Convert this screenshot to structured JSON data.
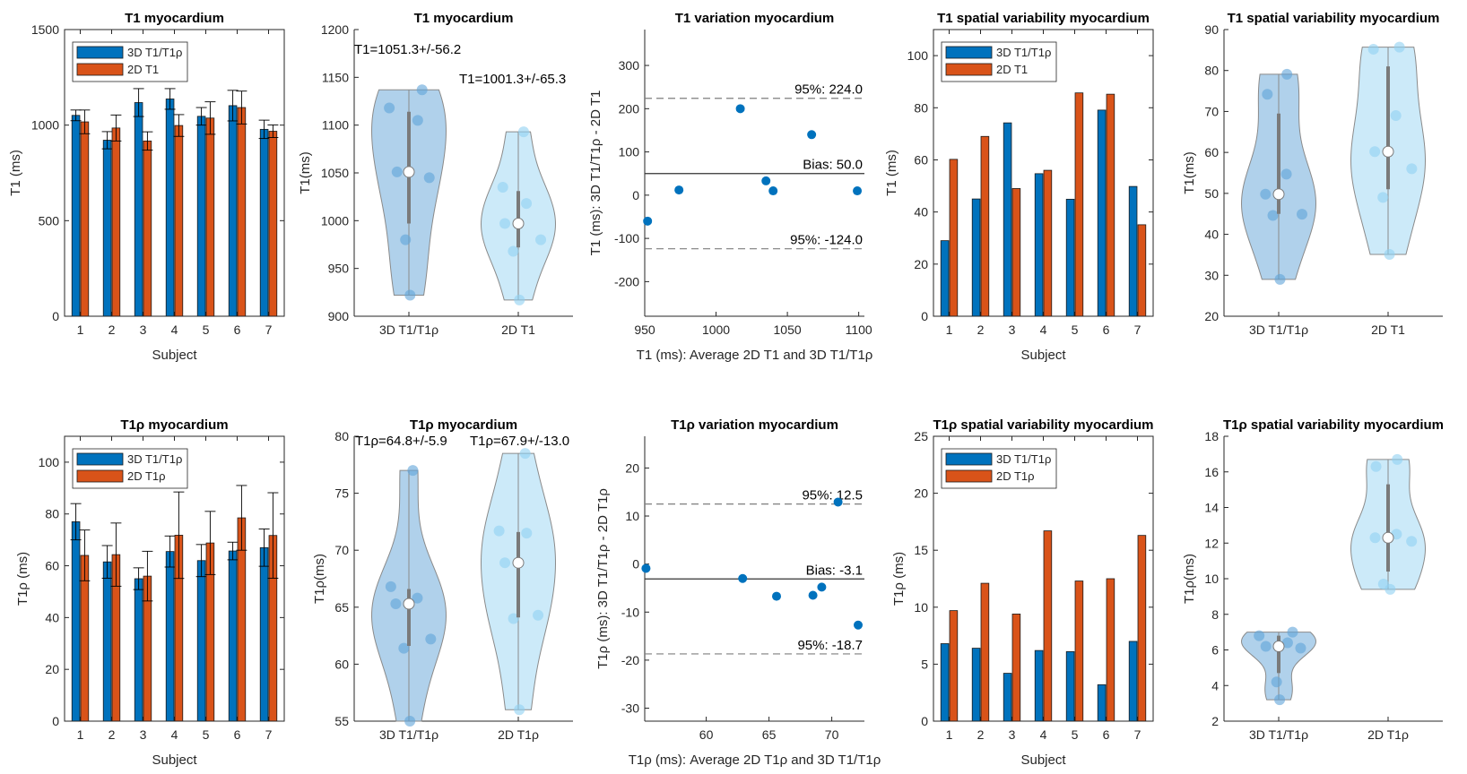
{
  "chart_data": [
    {
      "type": "bar",
      "title": "T1 myocardium",
      "xlabel": "Subject",
      "ylabel": "T1 (ms)",
      "categories": [
        "1",
        "2",
        "3",
        "4",
        "5",
        "6",
        "7"
      ],
      "ylim": [
        0,
        1500
      ],
      "yticks": [
        0,
        500,
        1000,
        1500
      ],
      "legend_placement": "top-left",
      "series": [
        {
          "name": "3D T1/T1ρ",
          "color": "#0072BD",
          "values": [
            1051,
            921,
            1118,
            1137,
            1046,
            1102,
            978
          ],
          "errors": [
            28,
            45,
            73,
            54,
            46,
            80,
            48
          ]
        },
        {
          "name": "2D T1",
          "color": "#D95319",
          "values": [
            1017,
            985,
            917,
            998,
            1037,
            1092,
            968
          ],
          "errors": [
            62,
            68,
            48,
            57,
            85,
            86,
            33
          ]
        }
      ]
    },
    {
      "type": "violin",
      "title": "T1 myocardium",
      "ylabel": "T1(ms)",
      "ylim": [
        900,
        1200
      ],
      "yticks": [
        900,
        950,
        1000,
        1050,
        1100,
        1150,
        1200
      ],
      "groups": [
        {
          "name": "3D T1/T1ρ",
          "fill": "#8fbde3",
          "dot": "#5fa3d8",
          "points": [
            1137,
            1118,
            1105,
            1051,
            1045,
            980,
            922
          ],
          "median": 1051,
          "q1": 997,
          "q3": 1114
        },
        {
          "name": "2D T1",
          "fill": "#b6e1f7",
          "dot": "#8fd0f2",
          "points": [
            1093,
            1035,
            1018,
            997,
            980,
            968,
            917
          ],
          "median": 997,
          "q1": 972,
          "q3": 1031
        }
      ],
      "annotations": [
        "T1=1051.3+/-56.2",
        "T1=1001.3+/-65.3"
      ]
    },
    {
      "type": "scatter",
      "title": "T1 variation myocardium",
      "xlabel": "T1 (ms): Average 2D T1 and 3D T1/T1ρ",
      "ylabel": "T1 (ms): 3D T1/T1ρ - 2D T1",
      "xlim": [
        950,
        1104
      ],
      "ylim": [
        -280,
        383
      ],
      "xticks": [
        950,
        1000,
        1050,
        1100
      ],
      "yticks": [
        -200,
        -100,
        0,
        100,
        200,
        300
      ],
      "x": [
        952,
        974,
        1017,
        1035,
        1040,
        1067,
        1099
      ],
      "y": [
        -60,
        12,
        200,
        33,
        10,
        140,
        10
      ],
      "color": "#0072BD",
      "lines": [
        {
          "label": "95%: 224.0",
          "value": 224.0,
          "style": "dashed"
        },
        {
          "label": "Bias: 50.0",
          "value": 50.0,
          "style": "solid"
        },
        {
          "label": "95%: -124.0",
          "value": -124.0,
          "style": "dashed"
        }
      ]
    },
    {
      "type": "bar",
      "title": "T1 spatial variability myocardium",
      "xlabel": "Subject",
      "ylabel": "T1 (ms)",
      "categories": [
        "1",
        "2",
        "3",
        "4",
        "5",
        "6",
        "7"
      ],
      "ylim": [
        0,
        110
      ],
      "yticks": [
        0,
        20,
        40,
        60,
        80,
        100
      ],
      "legend_placement": "top-left",
      "series": [
        {
          "name": "3D T1/T1ρ",
          "color": "#0072BD",
          "values": [
            29.0,
            45.0,
            74.2,
            54.7,
            44.9,
            79.1,
            49.8
          ]
        },
        {
          "name": "2D T1",
          "color": "#D95319",
          "values": [
            60.2,
            69.0,
            49.0,
            56.0,
            85.7,
            85.2,
            35.1
          ]
        }
      ]
    },
    {
      "type": "violin",
      "title": "T1 spatial variability myocardium",
      "ylabel": "T1(ms)",
      "ylim": [
        20,
        90
      ],
      "yticks": [
        20,
        30,
        40,
        50,
        60,
        70,
        80,
        90
      ],
      "groups": [
        {
          "name": "3D T1/T1ρ",
          "fill": "#8fbde3",
          "dot": "#5fa3d8",
          "points": [
            79.1,
            74.2,
            54.7,
            49.8,
            44.9,
            44.6,
            29.0
          ],
          "median": 49.8,
          "q1": 45.0,
          "q3": 69.5
        },
        {
          "name": "2D T1",
          "fill": "#b6e1f7",
          "dot": "#8fd0f2",
          "points": [
            85.7,
            85.2,
            69.0,
            60.2,
            56.0,
            49.0,
            35.1
          ],
          "median": 60.2,
          "q1": 51.0,
          "q3": 81.0
        }
      ],
      "annotations": []
    },
    {
      "type": "bar",
      "title": "T1ρ myocardium",
      "xlabel": "Subject",
      "ylabel": "T1ρ (ms)",
      "categories": [
        "1",
        "2",
        "3",
        "4",
        "5",
        "6",
        "7"
      ],
      "ylim": [
        0,
        110
      ],
      "yticks": [
        0,
        20,
        40,
        60,
        80,
        100
      ],
      "legend_placement": "top-left",
      "series": [
        {
          "name": "3D T1/T1ρ",
          "color": "#0072BD",
          "values": [
            77.0,
            61.5,
            55.0,
            65.5,
            62.0,
            65.7,
            67.0
          ],
          "errors": [
            7.0,
            6.3,
            4.2,
            6.0,
            6.2,
            3.4,
            7.2
          ]
        },
        {
          "name": "2D T1ρ",
          "color": "#D95319",
          "values": [
            64.0,
            64.3,
            56.0,
            71.8,
            68.8,
            78.5,
            71.7
          ],
          "errors": [
            9.8,
            12.2,
            9.6,
            16.7,
            12.2,
            12.5,
            16.5
          ]
        }
      ]
    },
    {
      "type": "violin",
      "title": "T1ρ myocardium",
      "ylabel": "T1ρ(ms)",
      "ylim": [
        55,
        80
      ],
      "yticks": [
        55,
        60,
        65,
        70,
        75,
        80
      ],
      "groups": [
        {
          "name": "3D T1/T1ρ",
          "fill": "#8fbde3",
          "dot": "#5fa3d8",
          "points": [
            77.0,
            66.8,
            65.8,
            65.3,
            62.2,
            61.4,
            55.0
          ],
          "median": 65.3,
          "q1": 61.6,
          "q3": 66.6
        },
        {
          "name": "2D T1ρ",
          "fill": "#b6e1f7",
          "dot": "#8fd0f2",
          "points": [
            78.5,
            71.7,
            71.5,
            68.9,
            64.3,
            64.0,
            56.0
          ],
          "median": 68.9,
          "q1": 64.1,
          "q3": 71.6
        }
      ],
      "annotations": [
        "T1ρ=64.8+/-5.9",
        "T1ρ=67.9+/-13.0"
      ]
    },
    {
      "type": "scatter",
      "title": "T1ρ variation myocardium",
      "xlabel": "T1ρ (ms): Average 2D T1ρ and 3D T1/T1ρ",
      "ylabel": "T1ρ (ms): 3D T1/T1ρ - 2D T1ρ",
      "xlim": [
        55.1,
        72.6
      ],
      "ylim": [
        -32.7,
        26.6
      ],
      "xticks": [
        60,
        65,
        70
      ],
      "yticks": [
        -30,
        -20,
        -10,
        0,
        10,
        20
      ],
      "x": [
        55.2,
        62.9,
        65.6,
        68.5,
        69.2,
        70.5,
        72.1
      ],
      "y": [
        -0.9,
        -3.0,
        -6.7,
        -6.5,
        -4.8,
        12.9,
        -12.7
      ],
      "color": "#0072BD",
      "lines": [
        {
          "label": "95%: 12.5",
          "value": 12.5,
          "style": "dashed"
        },
        {
          "label": "Bias: -3.1",
          "value": -3.1,
          "style": "solid"
        },
        {
          "label": "95%: -18.7",
          "value": -18.7,
          "style": "dashed"
        }
      ]
    },
    {
      "type": "bar",
      "title": "T1ρ spatial variability myocardium",
      "xlabel": "Subject",
      "ylabel": "T1ρ (ms)",
      "categories": [
        "1",
        "2",
        "3",
        "4",
        "5",
        "6",
        "7"
      ],
      "ylim": [
        0,
        25
      ],
      "yticks": [
        0,
        5,
        10,
        15,
        20,
        25
      ],
      "legend_placement": "top-left",
      "series": [
        {
          "name": "3D T1/T1ρ",
          "color": "#0072BD",
          "values": [
            6.8,
            6.4,
            4.2,
            6.2,
            6.1,
            3.2,
            7.0
          ]
        },
        {
          "name": "2D T1ρ",
          "color": "#D95319",
          "values": [
            9.7,
            12.1,
            9.4,
            16.7,
            12.3,
            12.5,
            16.3
          ]
        }
      ]
    },
    {
      "type": "violin",
      "title": "T1ρ spatial variability myocardium",
      "ylabel": "T1ρ(ms)",
      "ylim": [
        2,
        18
      ],
      "yticks": [
        2,
        4,
        6,
        8,
        10,
        12,
        14,
        16,
        18
      ],
      "groups": [
        {
          "name": "3D T1/T1ρ",
          "fill": "#8fbde3",
          "dot": "#5fa3d8",
          "points": [
            7.0,
            6.8,
            6.4,
            6.2,
            6.1,
            4.2,
            3.2
          ],
          "median": 6.2,
          "q1": 4.7,
          "q3": 6.8
        },
        {
          "name": "2D T1ρ",
          "fill": "#b6e1f7",
          "dot": "#8fd0f2",
          "points": [
            16.7,
            16.3,
            12.5,
            12.3,
            12.1,
            9.7,
            9.4
          ],
          "median": 12.3,
          "q1": 10.4,
          "q3": 15.3
        }
      ],
      "annotations": []
    }
  ]
}
